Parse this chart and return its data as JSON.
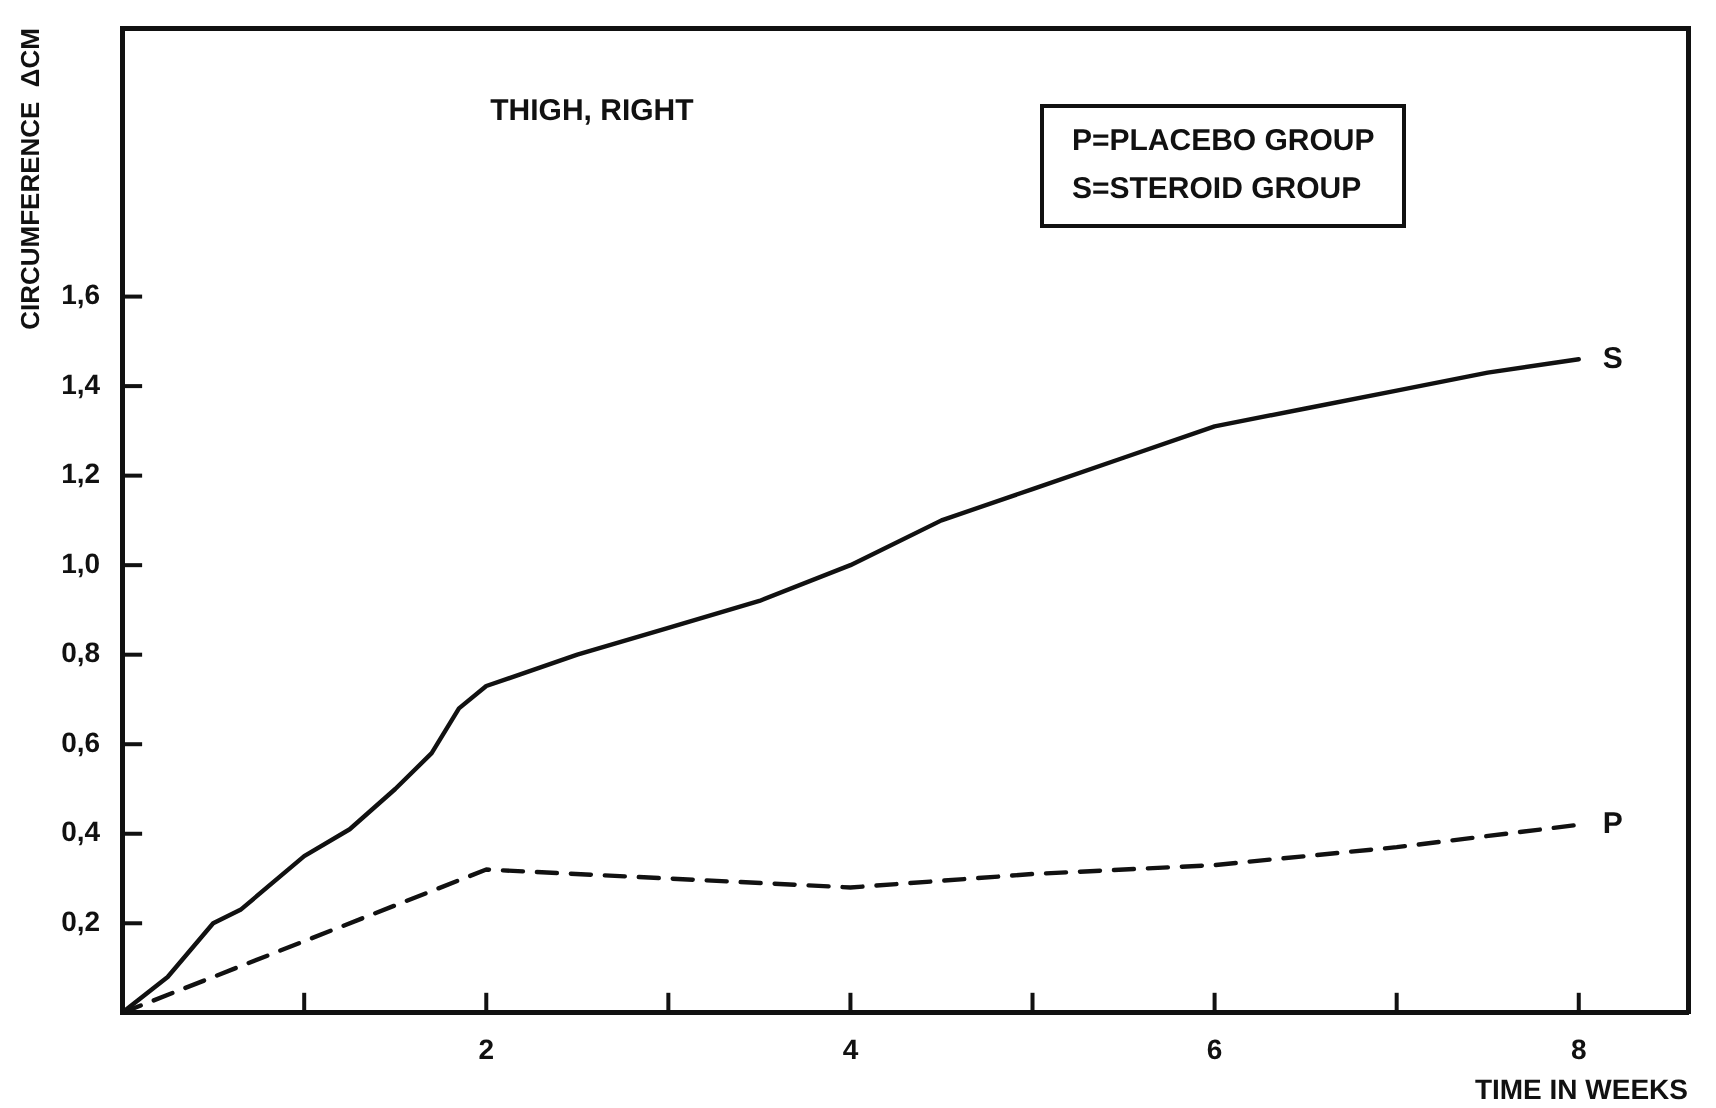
{
  "chart_data": {
    "type": "line",
    "title": "THIGH, RIGHT",
    "xlabel": "TIME IN WEEKS",
    "ylabel": "CIRCUMFERENCE  ΔCM",
    "annotations": [
      "P=PLACEBO  GROUP",
      "S=STEROID  GROUP"
    ],
    "xlim": [
      0,
      8.6
    ],
    "xticks": [
      {
        "value": 1,
        "label": null
      },
      2,
      {
        "value": 3,
        "label": null
      },
      4,
      {
        "value": 5,
        "label": null
      },
      6,
      {
        "value": 7,
        "label": null
      },
      8
    ],
    "ylim": [
      0,
      2.2
    ],
    "yticks": [
      {
        "value": 0.2,
        "label": "0,2"
      },
      {
        "value": 0.4,
        "label": "0,4"
      },
      {
        "value": 0.6,
        "label": "0,6"
      },
      {
        "value": 0.8,
        "label": "0,8"
      },
      {
        "value": 1.0,
        "label": "1,0"
      },
      {
        "value": 1.2,
        "label": "1,2"
      },
      {
        "value": 1.4,
        "label": "1,4"
      },
      {
        "value": 1.6,
        "label": "1,6"
      }
    ],
    "grid": false,
    "legend": false,
    "marker": "none",
    "series": [
      {
        "name": "S",
        "color": "#111111",
        "line_style": "solid",
        "x": [
          0,
          0.25,
          0.5,
          0.65,
          1,
          1.25,
          1.5,
          1.7,
          1.85,
          2,
          2.5,
          3,
          3.5,
          4,
          4.5,
          5,
          5.5,
          6,
          6.5,
          7,
          7.5,
          8
        ],
        "values": [
          0,
          0.08,
          0.2,
          0.23,
          0.35,
          0.41,
          0.5,
          0.58,
          0.68,
          0.73,
          0.8,
          0.86,
          0.92,
          1.0,
          1.1,
          1.17,
          1.24,
          1.31,
          1.35,
          1.39,
          1.43,
          1.46
        ]
      },
      {
        "name": "P",
        "color": "#111111",
        "line_style": "dashed",
        "x": [
          0,
          1,
          1.5,
          2,
          3,
          4,
          5,
          6,
          7,
          8
        ],
        "values": [
          0,
          0.16,
          0.24,
          0.32,
          0.3,
          0.28,
          0.31,
          0.33,
          0.37,
          0.42
        ]
      }
    ]
  }
}
